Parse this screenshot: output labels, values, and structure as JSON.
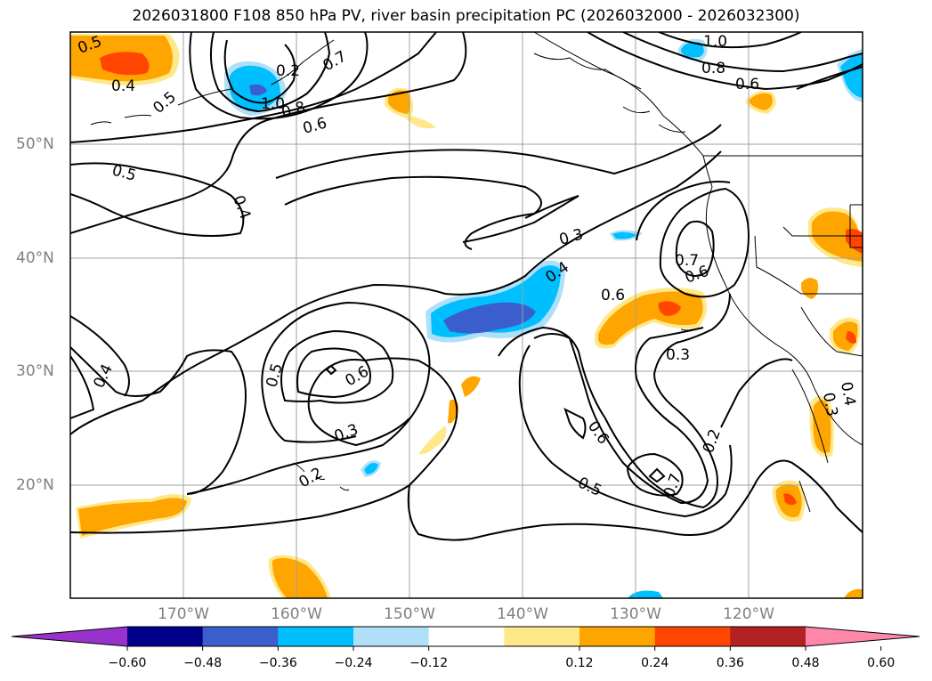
{
  "title": "2026031800 F108 850 hPa PV, river basin precipitation PC (2026032000 - 2026032300)",
  "axes": {
    "lon_labels": [
      "170°W",
      "160°W",
      "150°W",
      "140°W",
      "130°W",
      "120°W"
    ],
    "lat_labels": [
      "50°N",
      "40°N",
      "30°N",
      "20°N"
    ],
    "grid": true
  },
  "contour_labels": [
    "0.5",
    "0.4",
    "1.0",
    "0.8",
    "0.6",
    "0.2",
    "0.7",
    "1.0",
    "0.8",
    "0.6",
    "0.5",
    "0.5",
    "0.4",
    "0.3",
    "0.4",
    "0.6",
    "0.7",
    "0.6",
    "0.3",
    "0.4",
    "0.5",
    "0.6",
    "0.3",
    "0.2",
    "0.6",
    "0.5",
    "0.7",
    "0.2",
    "0.3",
    "0.4"
  ],
  "colorbar": {
    "ticks": [
      "−0.60",
      "−0.48",
      "−0.36",
      "−0.24",
      "−0.12",
      "0.12",
      "0.24",
      "0.36",
      "0.48",
      "0.60"
    ],
    "colors": [
      "#9932cc",
      "#00008b",
      "#3a5fcd",
      "#00bfff",
      "#afe0f8",
      "#ffffff",
      "#ffe88a",
      "#ffa500",
      "#ff4500",
      "#b22222",
      "#ff88aa"
    ]
  }
}
